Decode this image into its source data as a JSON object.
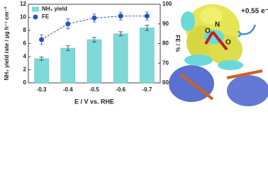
{
  "chart_data": {
    "type": "bar",
    "categories": [
      "-0.3",
      "-0.4",
      "-0.5",
      "-0.6",
      "-0.7"
    ],
    "xlabel": "E / V vs. RHE",
    "ylabel": "NH₃ yield rate / μg h⁻¹ cm⁻²",
    "y2label": "FE / %",
    "ylim": [
      0,
      12
    ],
    "yticks": [
      0,
      2,
      4,
      6,
      8,
      10,
      12
    ],
    "y2lim": [
      60,
      100
    ],
    "y2ticks": [
      60,
      70,
      80,
      90,
      100
    ],
    "legend": "upper left",
    "series": [
      {
        "name": "NH₃ yield",
        "type": "bar",
        "color": "#7fd9d9",
        "values": [
          3.7,
          5.3,
          6.6,
          7.5,
          8.4
        ],
        "errors": [
          0.25,
          0.35,
          0.35,
          0.3,
          0.4
        ]
      },
      {
        "name": "FE",
        "type": "scatter",
        "axis": "y2",
        "color": "#2b50c4",
        "values": [
          82,
          90,
          93,
          94,
          94
        ],
        "errors": [
          2.5,
          2.5,
          2,
          2,
          2
        ]
      }
    ]
  },
  "image": {
    "charge_label": "+0.55 e⁻",
    "atom_labels": [
      "O",
      "N",
      "O"
    ]
  }
}
